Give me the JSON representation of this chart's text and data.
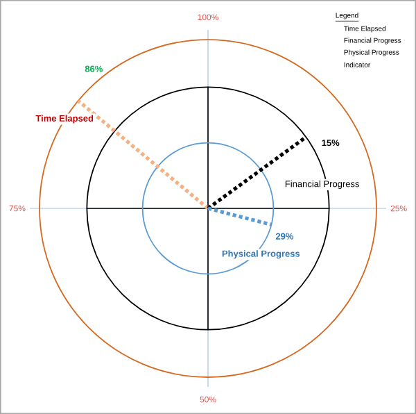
{
  "chart_data": {
    "type": "other",
    "categories": [
      "Time Elapsed",
      "Financial Progress",
      "Physical Progress"
    ],
    "values": [
      86,
      15,
      29
    ],
    "value_labels": [
      "86%",
      "15%",
      "29%"
    ],
    "colors": [
      "#f4b183",
      "#000000",
      "#5b9bd5"
    ],
    "legend_title": "Legend",
    "annotations": [
      "100%",
      "25%",
      "50%",
      "75%",
      "Indicator"
    ]
  }
}
